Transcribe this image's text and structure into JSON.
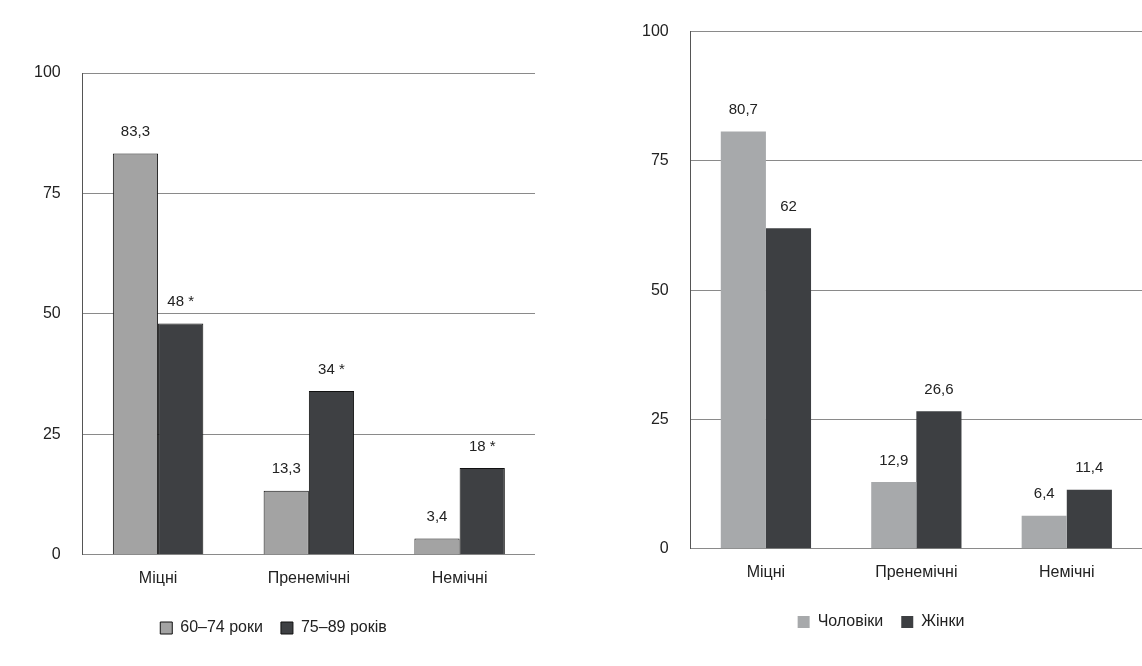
{
  "chart_data": [
    {
      "type": "bar",
      "categories": [
        "Міцні",
        "Пренемічні",
        "Немічні"
      ],
      "ylim": [
        0,
        100
      ],
      "yticks": [
        0,
        25,
        50,
        75,
        100
      ],
      "grid": "y",
      "legend": "bottom",
      "series": [
        {
          "name": "60–74 роки",
          "color": "#a3a3a3",
          "values": [
            83.3,
            13.3,
            3.4
          ],
          "value_labels": [
            "83,3",
            "13,3",
            "3,4"
          ]
        },
        {
          "name": "75–89 років",
          "color": "#3e4043",
          "values": [
            48,
            34,
            18
          ],
          "value_labels": [
            "48 *",
            "34 *",
            "18 *"
          ]
        }
      ]
    },
    {
      "type": "bar",
      "categories": [
        "Міцні",
        "Пренемічні",
        "Немічні"
      ],
      "ylim": [
        0,
        100
      ],
      "yticks": [
        0,
        25,
        50,
        75,
        100
      ],
      "grid": "y",
      "legend": "bottom",
      "series": [
        {
          "name": "Чоловіки",
          "color": "#a7a9ab",
          "values": [
            80.7,
            12.9,
            6.4
          ],
          "value_labels": [
            "80,7",
            "12,9",
            "6,4"
          ]
        },
        {
          "name": "Жінки",
          "color": "#3d3f42",
          "values": [
            62,
            26.6,
            11.4
          ],
          "value_labels": [
            "62",
            "26,6",
            "11,4"
          ]
        }
      ]
    }
  ]
}
